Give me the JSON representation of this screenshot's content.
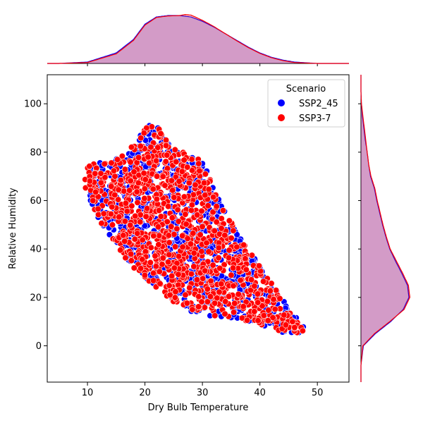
{
  "chart_data": {
    "type": "scatter",
    "subtype": "jointplot",
    "xlabel": "Dry Bulb Temperature",
    "ylabel": "Relative Humidity",
    "xlim": [
      3,
      55.5
    ],
    "ylim": [
      -15,
      112
    ],
    "x_ticks": [
      10,
      20,
      30,
      40,
      50
    ],
    "y_ticks": [
      0,
      20,
      40,
      60,
      80,
      100
    ],
    "x_tick_labels": [
      "10",
      "20",
      "30",
      "40",
      "50"
    ],
    "y_tick_labels": [
      "0",
      "20",
      "40",
      "60",
      "80",
      "100"
    ],
    "legend": {
      "title": "Scenario",
      "placement": "upper-right",
      "entries": [
        {
          "label": "SSP2_45",
          "color": "#0000ff"
        },
        {
          "label": "SSP3-7",
          "color": "#ff0000"
        }
      ]
    },
    "series": [
      {
        "name": "SSP2_45",
        "color": "#0000ff",
        "outline": [
          [
            9.5,
            73
          ],
          [
            11,
            76
          ],
          [
            14,
            76
          ],
          [
            17,
            80
          ],
          [
            19.5,
            88
          ],
          [
            21,
            92
          ],
          [
            22.5,
            90
          ],
          [
            23.5,
            86
          ],
          [
            25,
            82
          ],
          [
            27,
            80
          ],
          [
            29,
            78
          ],
          [
            30.5,
            74
          ],
          [
            31.5,
            68
          ],
          [
            32.5,
            62
          ],
          [
            34,
            56
          ],
          [
            35.5,
            50
          ],
          [
            37,
            44
          ],
          [
            38.5,
            38
          ],
          [
            40,
            33
          ],
          [
            42,
            26
          ],
          [
            44,
            19
          ],
          [
            46,
            13
          ],
          [
            48.5,
            6
          ],
          [
            46,
            5
          ],
          [
            44,
            5
          ],
          [
            42,
            7
          ],
          [
            40,
            9
          ],
          [
            38,
            10
          ],
          [
            35,
            11
          ],
          [
            32,
            12
          ],
          [
            28,
            14
          ],
          [
            26,
            16
          ],
          [
            24,
            20
          ],
          [
            22,
            24
          ],
          [
            20,
            28
          ],
          [
            18,
            32
          ],
          [
            16,
            38
          ],
          [
            14,
            44
          ],
          [
            12,
            52
          ],
          [
            10.5,
            60
          ],
          [
            9.5,
            66
          ]
        ],
        "marginal_x": [
          [
            5,
            0.0
          ],
          [
            10,
            0.03
          ],
          [
            15,
            0.22
          ],
          [
            18,
            0.5
          ],
          [
            20,
            0.82
          ],
          [
            22,
            0.97
          ],
          [
            24,
            1.0
          ],
          [
            26,
            1.0
          ],
          [
            28,
            0.97
          ],
          [
            30,
            0.88
          ],
          [
            32,
            0.76
          ],
          [
            34,
            0.62
          ],
          [
            36,
            0.48
          ],
          [
            38,
            0.34
          ],
          [
            40,
            0.22
          ],
          [
            42,
            0.13
          ],
          [
            44,
            0.07
          ],
          [
            46,
            0.03
          ],
          [
            50,
            0.0
          ],
          [
            55,
            0.0
          ]
        ],
        "marginal_y": [
          [
            -8,
            0.0
          ],
          [
            0,
            0.05
          ],
          [
            5,
            0.3
          ],
          [
            10,
            0.62
          ],
          [
            15,
            0.88
          ],
          [
            20,
            1.0
          ],
          [
            25,
            0.97
          ],
          [
            30,
            0.85
          ],
          [
            35,
            0.72
          ],
          [
            40,
            0.6
          ],
          [
            45,
            0.52
          ],
          [
            50,
            0.45
          ],
          [
            55,
            0.39
          ],
          [
            60,
            0.33
          ],
          [
            65,
            0.28
          ],
          [
            70,
            0.2
          ],
          [
            75,
            0.16
          ],
          [
            80,
            0.13
          ],
          [
            85,
            0.09
          ],
          [
            90,
            0.06
          ],
          [
            95,
            0.03
          ],
          [
            100,
            0.01
          ],
          [
            105,
            0.0
          ]
        ]
      },
      {
        "name": "SSP3-7",
        "color": "#ff0000",
        "outline": [
          [
            9.5,
            73
          ],
          [
            11,
            76
          ],
          [
            14,
            76
          ],
          [
            17,
            80
          ],
          [
            19.5,
            88
          ],
          [
            21,
            92
          ],
          [
            22.5,
            90
          ],
          [
            23.5,
            86
          ],
          [
            25,
            82
          ],
          [
            27,
            80
          ],
          [
            29,
            78
          ],
          [
            30.5,
            74
          ],
          [
            31.5,
            68
          ],
          [
            32.5,
            62
          ],
          [
            34,
            56
          ],
          [
            35.5,
            50
          ],
          [
            37,
            44
          ],
          [
            38.5,
            38
          ],
          [
            40,
            33
          ],
          [
            42,
            26
          ],
          [
            44,
            19
          ],
          [
            46,
            13
          ],
          [
            48.5,
            6
          ],
          [
            46,
            5
          ],
          [
            44,
            5
          ],
          [
            42,
            7
          ],
          [
            40,
            9
          ],
          [
            38,
            10
          ],
          [
            35,
            11
          ],
          [
            32,
            12
          ],
          [
            28,
            14
          ],
          [
            26,
            16
          ],
          [
            24,
            20
          ],
          [
            22,
            24
          ],
          [
            20,
            28
          ],
          [
            18,
            32
          ],
          [
            16,
            38
          ],
          [
            14,
            44
          ],
          [
            12,
            52
          ],
          [
            10.5,
            60
          ],
          [
            9.5,
            66
          ]
        ],
        "marginal_x": [
          [
            5,
            0.0
          ],
          [
            10,
            0.02
          ],
          [
            15,
            0.2
          ],
          [
            18,
            0.48
          ],
          [
            20,
            0.8
          ],
          [
            22,
            0.96
          ],
          [
            24,
            0.99
          ],
          [
            26,
            1.0
          ],
          [
            27,
            1.02
          ],
          [
            28,
            1.01
          ],
          [
            30,
            0.9
          ],
          [
            32,
            0.77
          ],
          [
            34,
            0.62
          ],
          [
            36,
            0.47
          ],
          [
            38,
            0.33
          ],
          [
            40,
            0.21
          ],
          [
            42,
            0.12
          ],
          [
            44,
            0.06
          ],
          [
            46,
            0.02
          ],
          [
            50,
            0.0
          ],
          [
            55,
            0.0
          ]
        ],
        "marginal_y": [
          [
            -8,
            0.0
          ],
          [
            0,
            0.04
          ],
          [
            5,
            0.28
          ],
          [
            10,
            0.6
          ],
          [
            15,
            0.9
          ],
          [
            20,
            1.02
          ],
          [
            25,
            0.99
          ],
          [
            30,
            0.87
          ],
          [
            35,
            0.74
          ],
          [
            40,
            0.61
          ],
          [
            45,
            0.53
          ],
          [
            50,
            0.46
          ],
          [
            55,
            0.4
          ],
          [
            60,
            0.34
          ],
          [
            65,
            0.29
          ],
          [
            70,
            0.21
          ],
          [
            75,
            0.16
          ],
          [
            80,
            0.13
          ],
          [
            85,
            0.1
          ],
          [
            90,
            0.07
          ],
          [
            95,
            0.04
          ],
          [
            100,
            0.01
          ],
          [
            105,
            0.0
          ]
        ]
      }
    ]
  }
}
